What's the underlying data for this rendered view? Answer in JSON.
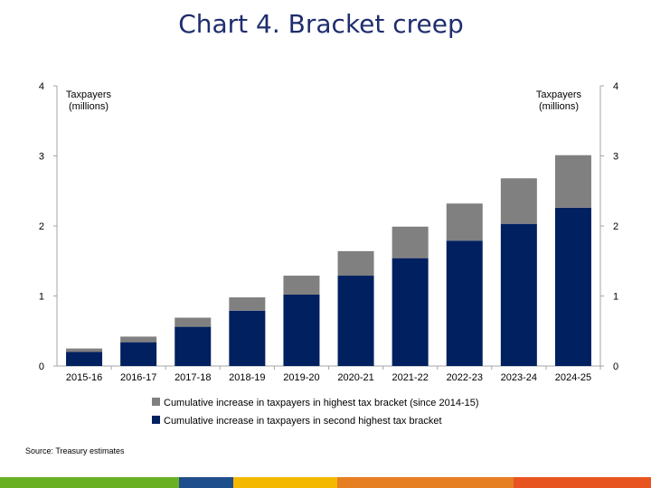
{
  "slide": {
    "title": "Chart 4. Bracket creep",
    "source": "Source: Treasury estimates"
  },
  "chart_data": {
    "type": "bar",
    "stacked": true,
    "title": "",
    "ylabel_left": [
      "Taxpayers",
      "(millions)"
    ],
    "ylabel_right": [
      "Taxpayers",
      "(millions)"
    ],
    "ylim": [
      0,
      4
    ],
    "yticks": [
      0,
      1,
      2,
      3,
      4
    ],
    "categories": [
      "2015-16",
      "2016-17",
      "2017-18",
      "2018-19",
      "2019-20",
      "2020-21",
      "2021-22",
      "2022-23",
      "2023-24",
      "2024-25"
    ],
    "series": [
      {
        "name": "Cumulative increase in taxpayers in second highest tax bracket",
        "color": "#002060",
        "values": [
          0.2,
          0.34,
          0.56,
          0.79,
          1.02,
          1.29,
          1.54,
          1.79,
          2.03,
          2.26
        ]
      },
      {
        "name": "Cumulative increase in taxpayers in highest tax bracket (since 2014-15)",
        "color": "#808080",
        "values": [
          0.05,
          0.08,
          0.13,
          0.19,
          0.27,
          0.35,
          0.45,
          0.53,
          0.65,
          0.75
        ]
      }
    ],
    "legend": [
      {
        "label": "Cumulative increase in taxpayers in highest tax bracket (since 2014-15)",
        "color": "#808080"
      },
      {
        "label": "Cumulative increase in taxpayers in second highest tax bracket",
        "color": "#002060"
      }
    ],
    "legend_position": "bottom"
  },
  "colors": {
    "title": "#1f2d6e",
    "axis": "#a6a6a6",
    "footer": [
      "#6ab023",
      "#1f4e8c",
      "#f5b800",
      "#e67e22",
      "#e8541f"
    ]
  }
}
